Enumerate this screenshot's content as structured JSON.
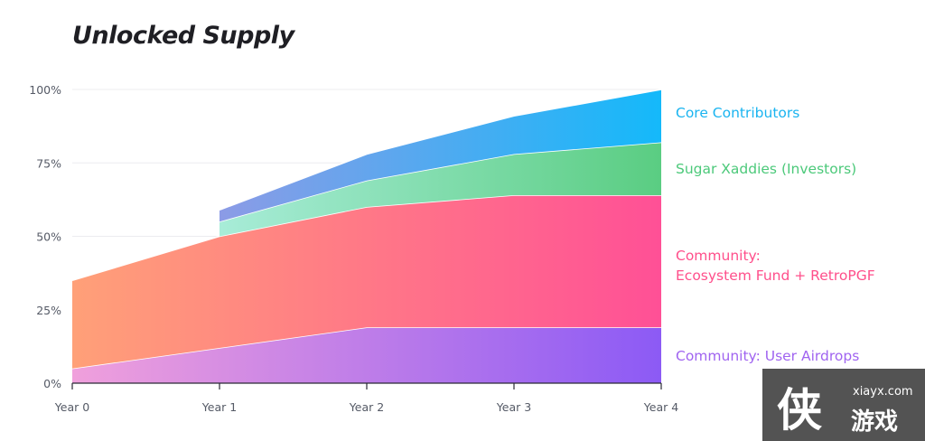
{
  "chart_data": {
    "type": "area",
    "title": "Unlocked Supply",
    "xlabel": "",
    "ylabel": "",
    "categories": [
      "Year 0",
      "Year 1",
      "Year 2",
      "Year 3",
      "Year 4"
    ],
    "x": [
      0,
      1,
      2,
      3,
      4
    ],
    "ylim": [
      0,
      100
    ],
    "yticks": [
      0,
      25,
      50,
      75,
      100
    ],
    "ytick_labels": [
      "0%",
      "25%",
      "50%",
      "75%",
      "100%"
    ],
    "grid": true,
    "stacked": true,
    "series": [
      {
        "name": "Community: User Airdrops",
        "color": "#a064f0",
        "gradient": [
          "#f0a0dc",
          "#8c5af5"
        ],
        "points": [
          [
            0,
            0,
            5
          ],
          [
            1,
            0,
            12
          ],
          [
            2,
            0,
            19
          ],
          [
            3,
            0,
            19
          ],
          [
            4,
            0,
            19
          ]
        ]
      },
      {
        "name": "Community:\nEcosystem Fund + RetroPGF",
        "label_lines": [
          "Community:",
          "Ecosystem Fund + RetroPGF"
        ],
        "color": "#ff4f8b",
        "gradient": [
          "#ffa078",
          "#ff5096"
        ],
        "points": [
          [
            0,
            5,
            35
          ],
          [
            1,
            12,
            50
          ],
          [
            2,
            19,
            60
          ],
          [
            3,
            19,
            64
          ],
          [
            4,
            19,
            64
          ]
        ]
      },
      {
        "name": "Sugar Xaddies (Investors)",
        "color": "#4cc97a",
        "gradient": [
          "#a8ecd8",
          "#5acd82"
        ],
        "points": [
          [
            1,
            50,
            55
          ],
          [
            2,
            60,
            69
          ],
          [
            3,
            64,
            78
          ],
          [
            4,
            64,
            82
          ]
        ]
      },
      {
        "name": "Core Contributors",
        "color": "#1ab4f0",
        "gradient": [
          "#8c9be6",
          "#14b9fa"
        ],
        "points": [
          [
            1,
            55,
            59
          ],
          [
            2,
            69,
            78
          ],
          [
            3,
            78,
            91
          ],
          [
            4,
            82,
            100
          ]
        ]
      }
    ],
    "legend_placement": "right"
  },
  "watermark": {
    "glyph": "侠",
    "site": "xiayx.com",
    "name": "游戏"
  }
}
